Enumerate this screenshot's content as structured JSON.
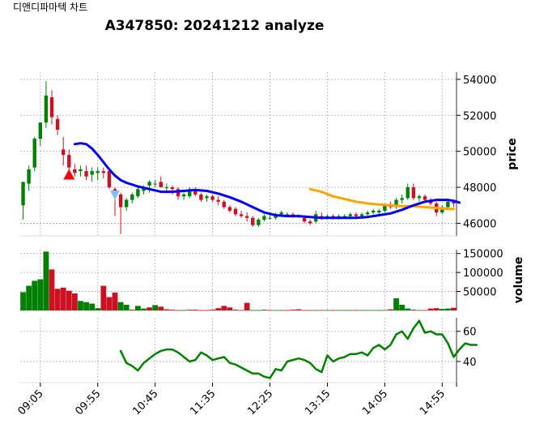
{
  "window_title": "디앤디파마텍 차트",
  "chart_data": {
    "type": "candlestick",
    "title": "A347850: 20241212 analyze",
    "x_ticks": [
      "09:05",
      "09:55",
      "10:45",
      "11:35",
      "12:25",
      "13:15",
      "14:05",
      "14:55"
    ],
    "grid": true,
    "panels": {
      "price": {
        "ylabel": "price",
        "yticks": [
          46000,
          48000,
          50000,
          52000,
          54000
        ],
        "tick_labels": [
          "46000",
          "48000",
          "50000",
          "52000",
          "54000"
        ],
        "ylim": [
          45300,
          54400
        ],
        "candles": [
          [
            47000,
            48300,
            46200,
            48300
          ],
          [
            48200,
            49200,
            47800,
            49000
          ],
          [
            49100,
            50800,
            48900,
            50700
          ],
          [
            50700,
            51600,
            50300,
            51600
          ],
          [
            51600,
            53900,
            51300,
            53100
          ],
          [
            53000,
            53400,
            51500,
            51900
          ],
          [
            51800,
            52000,
            50900,
            51200
          ],
          [
            50100,
            50800,
            49200,
            49800
          ],
          [
            49800,
            50100,
            48800,
            49100
          ],
          [
            49000,
            49300,
            48600,
            48800
          ],
          [
            48900,
            49200,
            48600,
            49000
          ],
          [
            48900,
            49200,
            48400,
            48600
          ],
          [
            48700,
            49100,
            48300,
            48900
          ],
          [
            48800,
            49100,
            48400,
            48900
          ],
          [
            48900,
            49100,
            48500,
            48800
          ],
          [
            48900,
            49000,
            47900,
            48000
          ],
          [
            47900,
            48000,
            46400,
            47600
          ],
          [
            47600,
            47700,
            45400,
            46900
          ],
          [
            46900,
            47400,
            46700,
            47300
          ],
          [
            47300,
            47700,
            47100,
            47600
          ],
          [
            47500,
            48000,
            47400,
            47900
          ],
          [
            47800,
            48100,
            47600,
            48000
          ],
          [
            48100,
            48400,
            47700,
            48300
          ],
          [
            48200,
            48400,
            48000,
            48200
          ],
          [
            48300,
            48600,
            48000,
            48000
          ],
          [
            48000,
            48200,
            47800,
            48000
          ],
          [
            48000,
            48100,
            47600,
            47900
          ],
          [
            47900,
            48000,
            47300,
            47500
          ],
          [
            47500,
            47700,
            47300,
            47600
          ],
          [
            47500,
            48000,
            47400,
            47900
          ],
          [
            47900,
            48000,
            47500,
            47600
          ],
          [
            47600,
            47700,
            47200,
            47300
          ],
          [
            47400,
            47600,
            47200,
            47500
          ],
          [
            47500,
            47600,
            47200,
            47300
          ],
          [
            47300,
            47500,
            47000,
            47200
          ],
          [
            47200,
            47300,
            46800,
            46900
          ],
          [
            46900,
            47000,
            46600,
            46700
          ],
          [
            46800,
            46900,
            46400,
            46500
          ],
          [
            46500,
            46700,
            46300,
            46400
          ],
          [
            46400,
            46600,
            46100,
            46300
          ],
          [
            46300,
            46400,
            45800,
            45900
          ],
          [
            45900,
            46300,
            45800,
            46200
          ],
          [
            46200,
            46500,
            46100,
            46400
          ],
          [
            46300,
            46600,
            46200,
            46300
          ],
          [
            46300,
            46600,
            46200,
            46500
          ],
          [
            46500,
            46700,
            46400,
            46600
          ],
          [
            46500,
            46600,
            46400,
            46500
          ],
          [
            46500,
            46600,
            46300,
            46400
          ],
          [
            46400,
            46500,
            46300,
            46400
          ],
          [
            46300,
            46400,
            46000,
            46100
          ],
          [
            46100,
            46200,
            45900,
            46000
          ],
          [
            46100,
            46700,
            46000,
            46500
          ],
          [
            46400,
            46600,
            46200,
            46300
          ],
          [
            46300,
            46500,
            46200,
            46400
          ],
          [
            46400,
            46500,
            46200,
            46300
          ],
          [
            46300,
            46500,
            46200,
            46400
          ],
          [
            46400,
            46500,
            46300,
            46400
          ],
          [
            46400,
            46600,
            46300,
            46500
          ],
          [
            46500,
            46600,
            46300,
            46400
          ],
          [
            46400,
            46600,
            46300,
            46500
          ],
          [
            46500,
            46700,
            46400,
            46600
          ],
          [
            46600,
            46800,
            46500,
            46700
          ],
          [
            46600,
            46800,
            46500,
            46700
          ],
          [
            46700,
            47100,
            46600,
            47000
          ],
          [
            47000,
            47200,
            46800,
            46900
          ],
          [
            46900,
            47400,
            46800,
            47300
          ],
          [
            47300,
            47600,
            47100,
            47400
          ],
          [
            47400,
            48200,
            47300,
            48000
          ],
          [
            48000,
            48200,
            47300,
            47400
          ],
          [
            47400,
            47600,
            47200,
            47500
          ],
          [
            47500,
            47600,
            47200,
            47300
          ],
          [
            47300,
            47400,
            47000,
            47100
          ],
          [
            47100,
            47200,
            46400,
            46600
          ],
          [
            46600,
            47000,
            46500,
            46900
          ],
          [
            46900,
            47300,
            46800,
            47200
          ],
          [
            47200,
            47300,
            46900,
            47100
          ]
        ],
        "ma_short": [
          [
            9,
            50400
          ],
          [
            10,
            50450
          ],
          [
            11,
            50400
          ],
          [
            12,
            50150
          ],
          [
            13,
            49800
          ],
          [
            14,
            49400
          ],
          [
            15,
            49000
          ],
          [
            16,
            48650
          ],
          [
            17,
            48400
          ],
          [
            18,
            48250
          ],
          [
            19,
            48150
          ],
          [
            20,
            48050
          ],
          [
            22,
            47900
          ],
          [
            24,
            47750
          ],
          [
            26,
            47750
          ],
          [
            28,
            47800
          ],
          [
            30,
            47850
          ],
          [
            32,
            47800
          ],
          [
            34,
            47650
          ],
          [
            36,
            47450
          ],
          [
            38,
            47200
          ],
          [
            40,
            46900
          ],
          [
            42,
            46600
          ],
          [
            44,
            46450
          ],
          [
            46,
            46400
          ],
          [
            48,
            46400
          ],
          [
            50,
            46350
          ],
          [
            52,
            46300
          ],
          [
            54,
            46300
          ],
          [
            56,
            46300
          ],
          [
            58,
            46300
          ],
          [
            60,
            46350
          ],
          [
            62,
            46450
          ],
          [
            64,
            46550
          ],
          [
            66,
            46750
          ],
          [
            68,
            47000
          ],
          [
            70,
            47200
          ],
          [
            72,
            47300
          ],
          [
            74,
            47300
          ],
          [
            75,
            47250
          ],
          [
            76,
            47150
          ]
        ],
        "ma_long": [
          [
            50,
            47900
          ],
          [
            52,
            47750
          ],
          [
            54,
            47500
          ],
          [
            56,
            47350
          ],
          [
            58,
            47200
          ],
          [
            60,
            47100
          ],
          [
            62,
            47050
          ],
          [
            64,
            47000
          ],
          [
            66,
            46950
          ],
          [
            68,
            46950
          ],
          [
            70,
            46900
          ],
          [
            72,
            46850
          ],
          [
            74,
            46800
          ],
          [
            75,
            46800
          ]
        ],
        "buy_markers": [
          [
            8,
            48700
          ]
        ],
        "sell_markers": [
          [
            16,
            47600
          ]
        ]
      },
      "volume": {
        "ylabel": "volume",
        "yticks": [
          50000,
          100000,
          150000
        ],
        "tick_labels": [
          "50000",
          "100000",
          "150000"
        ],
        "ylim": [
          0,
          160000
        ],
        "values": [
          48000,
          65000,
          78000,
          82000,
          155000,
          108000,
          57000,
          60000,
          52000,
          45000,
          25000,
          22000,
          18000,
          6000,
          65000,
          35000,
          47000,
          22000,
          15000,
          2000,
          12000,
          5000,
          8000,
          14000,
          10000,
          3000,
          2000,
          1000,
          1000,
          2000,
          2000,
          1000,
          1000,
          2000,
          6000,
          12000,
          8000,
          2000,
          1000,
          20000,
          1000,
          1000,
          2000,
          1000,
          1000,
          1000,
          1000,
          2000,
          3000,
          1000,
          1000,
          1000,
          1000,
          1000,
          1000,
          1000,
          1000,
          1000,
          1000,
          1000,
          1000,
          1000,
          1000,
          1000,
          3000,
          32000,
          15000,
          5000,
          2000,
          1000,
          1000,
          5000,
          6000,
          4000,
          5000,
          7000
        ],
        "up": [
          true,
          true,
          true,
          true,
          true,
          false,
          false,
          false,
          false,
          false,
          true,
          true,
          true,
          true,
          false,
          false,
          false,
          true,
          true,
          false,
          true,
          true,
          false,
          true,
          false,
          false,
          false,
          false,
          true,
          false,
          false,
          false,
          false,
          false,
          false,
          false,
          false,
          false,
          false,
          false,
          true,
          true,
          true,
          false,
          true,
          true,
          false,
          false,
          false,
          false,
          false,
          true,
          false,
          true,
          false,
          true,
          true,
          true,
          false,
          true,
          true,
          true,
          true,
          true,
          false,
          true,
          true,
          true,
          false,
          true,
          false,
          false,
          false,
          true,
          true,
          false
        ]
      },
      "indicator": {
        "ylabel": "",
        "yticks": [
          40,
          60
        ],
        "tick_labels": [
          "40",
          "60"
        ],
        "ylim": [
          26,
          69
        ],
        "values": [
          [
            17,
            47
          ],
          [
            18,
            39
          ],
          [
            19,
            37
          ],
          [
            20,
            34
          ],
          [
            21,
            39
          ],
          [
            22,
            42
          ],
          [
            23,
            45
          ],
          [
            24,
            47
          ],
          [
            25,
            48
          ],
          [
            26,
            48
          ],
          [
            27,
            46
          ],
          [
            28,
            43
          ],
          [
            29,
            40
          ],
          [
            30,
            41
          ],
          [
            31,
            46
          ],
          [
            32,
            44
          ],
          [
            33,
            41
          ],
          [
            34,
            42
          ],
          [
            35,
            43
          ],
          [
            36,
            39
          ],
          [
            37,
            38
          ],
          [
            38,
            36
          ],
          [
            39,
            34
          ],
          [
            40,
            32
          ],
          [
            41,
            32
          ],
          [
            42,
            30
          ],
          [
            43,
            29
          ],
          [
            44,
            35
          ],
          [
            45,
            34
          ],
          [
            46,
            40
          ],
          [
            47,
            41
          ],
          [
            48,
            42
          ],
          [
            49,
            41
          ],
          [
            50,
            39
          ],
          [
            51,
            35
          ],
          [
            52,
            33
          ],
          [
            53,
            44
          ],
          [
            54,
            40
          ],
          [
            55,
            42
          ],
          [
            56,
            43
          ],
          [
            57,
            45
          ],
          [
            58,
            45
          ],
          [
            59,
            46
          ],
          [
            60,
            44
          ],
          [
            61,
            49
          ],
          [
            62,
            51
          ],
          [
            63,
            48
          ],
          [
            64,
            51
          ],
          [
            65,
            58
          ],
          [
            66,
            60
          ],
          [
            67,
            55
          ],
          [
            68,
            62
          ],
          [
            69,
            67
          ],
          [
            70,
            59
          ],
          [
            71,
            60
          ],
          [
            72,
            58
          ],
          [
            73,
            58
          ],
          [
            74,
            52
          ],
          [
            75,
            43
          ],
          [
            76,
            48
          ],
          [
            77,
            52
          ],
          [
            78,
            51
          ],
          [
            79,
            51
          ]
        ]
      }
    }
  }
}
